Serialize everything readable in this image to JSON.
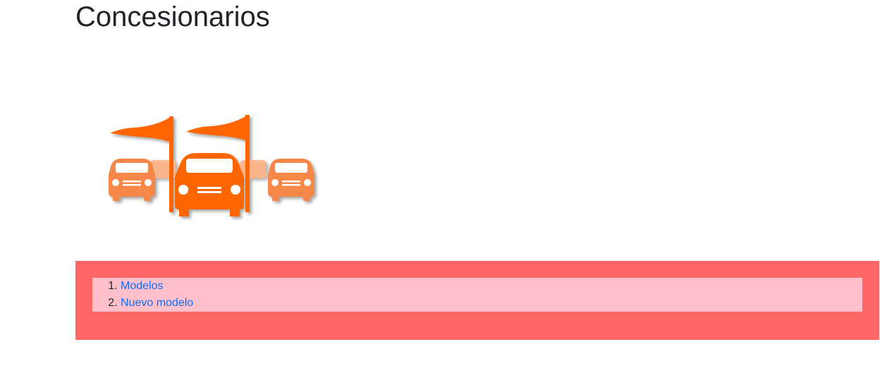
{
  "page": {
    "title": "Concesionarios"
  },
  "logo": {
    "icon": "car-dealership-icon",
    "color": "#ff6600"
  },
  "nav": {
    "panel_color": "#ff6666",
    "list_color": "#ffc0cb",
    "link_color": "#0d6efd",
    "items": [
      {
        "label": "Modelos"
      },
      {
        "label": "Nuevo modelo"
      }
    ]
  }
}
